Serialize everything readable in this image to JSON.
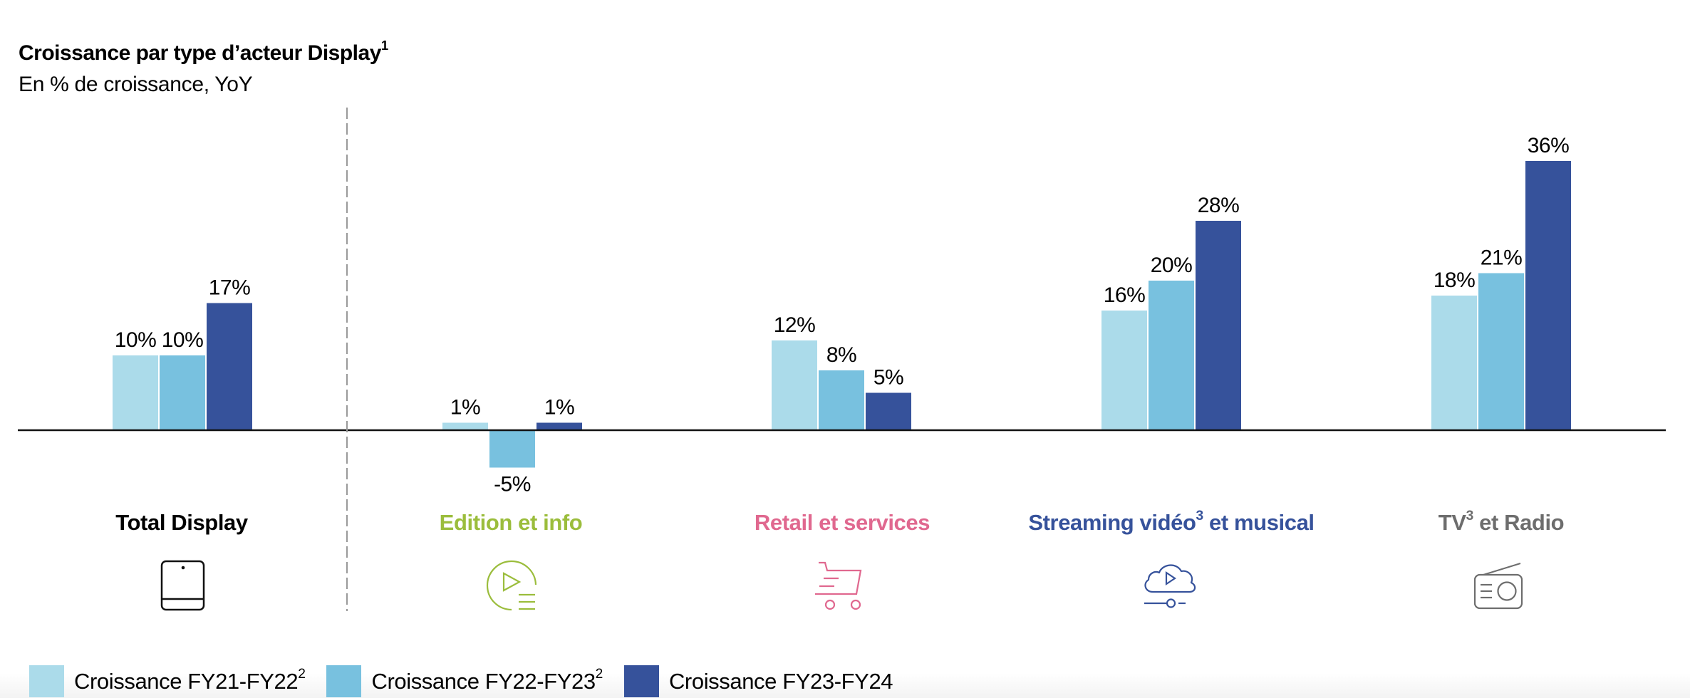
{
  "title": {
    "text": "Croissance par type d’acteur Display",
    "sup": "1"
  },
  "subtitle": "En % de croissance, YoY",
  "colors": {
    "series": [
      "#abdbea",
      "#78c1df",
      "#36529b"
    ],
    "categories": [
      "#000000",
      "#9bbd3c",
      "#e0688f",
      "#36529b",
      "#6d6d6d"
    ],
    "baseline": "#111111",
    "divider": "#999999"
  },
  "chart_data": {
    "type": "bar",
    "title": "Croissance par type d’acteur Display¹",
    "subtitle": "En % de croissance, YoY",
    "xlabel": "",
    "ylabel": "",
    "ylim": [
      -5,
      36
    ],
    "grid": false,
    "legend_position": "bottom-left",
    "categories": [
      "Total Display",
      "Edition et info",
      "Retail et services",
      "Streaming vidéo³ et musical",
      "TV³ et Radio"
    ],
    "series": [
      {
        "name": "Croissance FY21-FY22²",
        "values": [
          10,
          1,
          12,
          16,
          18
        ]
      },
      {
        "name": "Croissance FY22-FY23²",
        "values": [
          10,
          -5,
          8,
          20,
          21
        ]
      },
      {
        "name": "Croissance FY23-FY24",
        "values": [
          17,
          1,
          5,
          28,
          36
        ]
      }
    ],
    "data_labels": [
      [
        "10%",
        "1%",
        "12%",
        "16%",
        "18%"
      ],
      [
        "10%",
        "-5%",
        "8%",
        "20%",
        "21%"
      ],
      [
        "17%",
        "1%",
        "5%",
        "28%",
        "36%"
      ]
    ]
  },
  "categories": [
    {
      "label": "Total Display",
      "sup": "",
      "suffix": "",
      "icon": "tablet-icon"
    },
    {
      "label": "Edition et info",
      "sup": "",
      "suffix": "",
      "icon": "play-list-icon"
    },
    {
      "label": "Retail et services",
      "sup": "",
      "suffix": "",
      "icon": "shopping-cart-icon"
    },
    {
      "label": "Streaming vidéo",
      "sup": "3",
      "suffix": " et musical",
      "icon": "cloud-play-icon"
    },
    {
      "label": "TV",
      "sup": "3",
      "suffix": " et Radio",
      "icon": "radio-icon"
    }
  ],
  "legend": [
    {
      "label": "Croissance FY21-FY22",
      "sup": "2"
    },
    {
      "label": "Croissance FY22-FY23",
      "sup": "2"
    },
    {
      "label": "Croissance FY23-FY24",
      "sup": ""
    }
  ]
}
